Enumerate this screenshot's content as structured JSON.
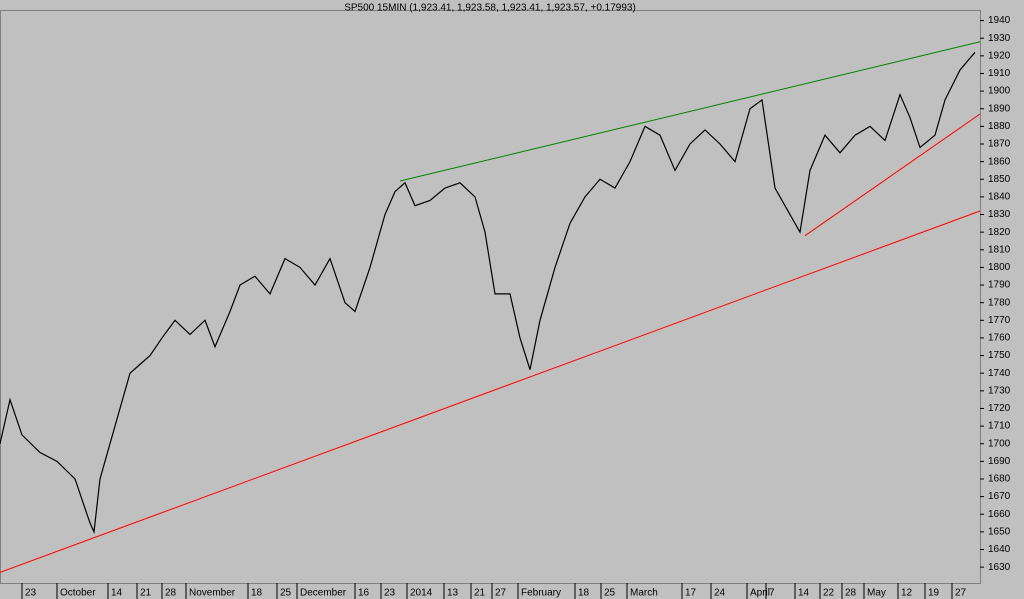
{
  "chart_data": {
    "type": "line",
    "title": "SP500 15MIN (1,923.41, 1,923.58, 1,923.41, 1,923.57, +0.17993)",
    "x": [
      0,
      10,
      22,
      40,
      57,
      75,
      90,
      94,
      100,
      110,
      120,
      130,
      140,
      150,
      162,
      175,
      190,
      205,
      215,
      230,
      240,
      255,
      270,
      285,
      300,
      315,
      330,
      345,
      355,
      370,
      385,
      395,
      405,
      415,
      430,
      445,
      460,
      475,
      485,
      495,
      510,
      520,
      530,
      540,
      555,
      570,
      585,
      600,
      615,
      630,
      645,
      660,
      675,
      690,
      705,
      720,
      735,
      750,
      762,
      775,
      790,
      800,
      810,
      825,
      840,
      855,
      870,
      885,
      900,
      910,
      920,
      935,
      945,
      960,
      975
    ],
    "series": [
      {
        "name": "SP500",
        "color": "#000000",
        "values": [
          1700,
          1725,
          1705,
          1695,
          1690,
          1680,
          1655,
          1650,
          1680,
          1700,
          1720,
          1740,
          1745,
          1750,
          1760,
          1770,
          1762,
          1770,
          1755,
          1775,
          1790,
          1795,
          1785,
          1805,
          1800,
          1790,
          1805,
          1780,
          1775,
          1800,
          1830,
          1843,
          1848,
          1835,
          1838,
          1845,
          1848,
          1840,
          1820,
          1785,
          1785,
          1760,
          1742,
          1770,
          1800,
          1825,
          1840,
          1850,
          1845,
          1860,
          1880,
          1875,
          1855,
          1870,
          1878,
          1870,
          1860,
          1890,
          1895,
          1845,
          1830,
          1820,
          1855,
          1875,
          1865,
          1875,
          1880,
          1872,
          1898,
          1885,
          1868,
          1875,
          1895,
          1912,
          1922
        ]
      }
    ],
    "trendlines": [
      {
        "color": "#008000",
        "x": [
          400,
          980
        ],
        "values": [
          1849,
          1928
        ]
      },
      {
        "color": "#ff0000",
        "x": [
          0,
          980
        ],
        "values": [
          1627,
          1832
        ]
      },
      {
        "color": "#ff0000",
        "x": [
          805,
          980
        ],
        "values": [
          1818,
          1887
        ]
      }
    ],
    "xlim": [
      0,
      980
    ],
    "ylim": [
      1621,
      1946
    ],
    "yticks": [
      1630,
      1640,
      1650,
      1660,
      1670,
      1680,
      1690,
      1700,
      1710,
      1720,
      1730,
      1740,
      1750,
      1760,
      1770,
      1780,
      1790,
      1800,
      1810,
      1820,
      1830,
      1840,
      1850,
      1860,
      1870,
      1880,
      1890,
      1900,
      1910,
      1920,
      1930,
      1940
    ],
    "xticks": [
      {
        "value": 22,
        "label": "23"
      },
      {
        "value": 57,
        "label": "October"
      },
      {
        "value": 108,
        "label": "14"
      },
      {
        "value": 137,
        "label": "21"
      },
      {
        "value": 162,
        "label": "28"
      },
      {
        "value": 186,
        "label": "November"
      },
      {
        "value": 248,
        "label": "18"
      },
      {
        "value": 277,
        "label": "25"
      },
      {
        "value": 297,
        "label": "December"
      },
      {
        "value": 355,
        "label": "16"
      },
      {
        "value": 381,
        "label": "23"
      },
      {
        "value": 407,
        "label": "2014"
      },
      {
        "value": 444,
        "label": "13"
      },
      {
        "value": 471,
        "label": "21"
      },
      {
        "value": 492,
        "label": "27"
      },
      {
        "value": 518,
        "label": "February"
      },
      {
        "value": 575,
        "label": "18"
      },
      {
        "value": 601,
        "label": "25"
      },
      {
        "value": 627,
        "label": "March"
      },
      {
        "value": 682,
        "label": "17"
      },
      {
        "value": 711,
        "label": "24"
      },
      {
        "value": 747,
        "label": "April"
      },
      {
        "value": 766,
        "label": "7"
      },
      {
        "value": 795,
        "label": "14"
      },
      {
        "value": 820,
        "label": "22"
      },
      {
        "value": 842,
        "label": "28"
      },
      {
        "value": 864,
        "label": "May"
      },
      {
        "value": 898,
        "label": "12"
      },
      {
        "value": 925,
        "label": "19"
      },
      {
        "value": 952,
        "label": "27"
      }
    ],
    "grid": false
  }
}
